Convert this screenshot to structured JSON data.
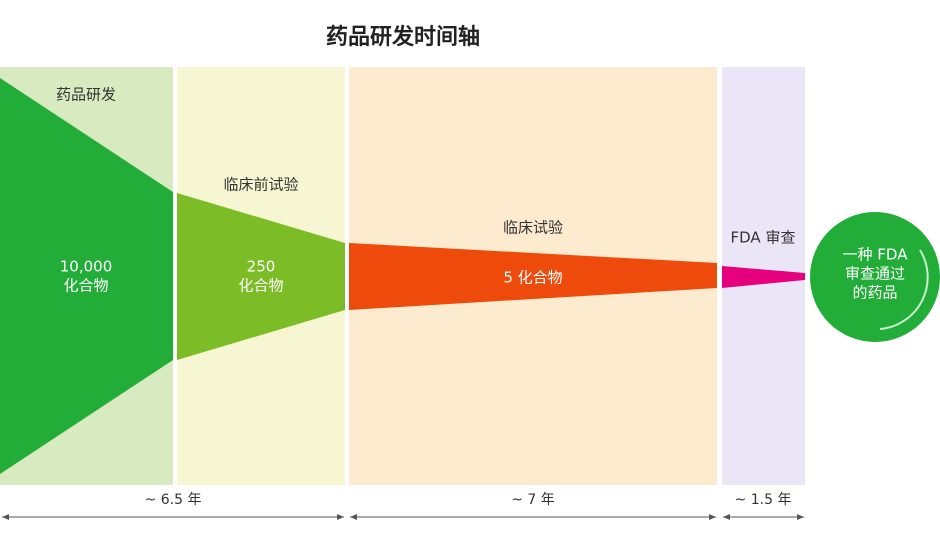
{
  "title": "药品研发时间轴",
  "stages": [
    {
      "label": "药品研发",
      "count": [
        "10,000",
        "化合物"
      ]
    },
    {
      "label": "临床前试验",
      "count": [
        "250",
        "化合物"
      ]
    },
    {
      "label": "临床试验",
      "count": [
        "5 化合物"
      ]
    },
    {
      "label": "FDA 审查",
      "count": []
    }
  ],
  "durations": [
    "~ 6.5 年",
    "~ 7 年",
    "~ 1.5 年"
  ],
  "result": [
    "一种 FDA",
    "审查通过",
    "的药品"
  ]
}
